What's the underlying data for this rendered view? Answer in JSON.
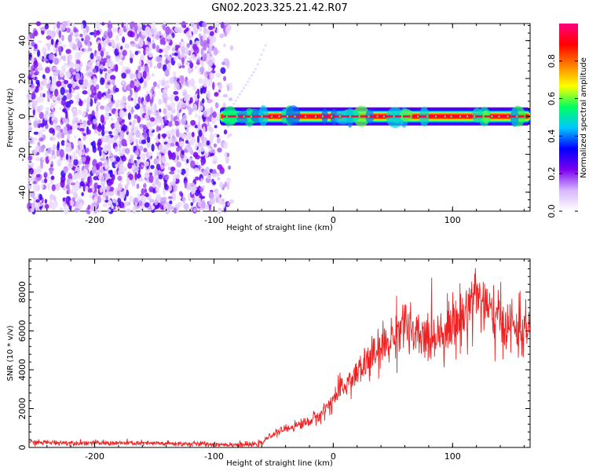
{
  "title": "GN02.2023.325.21.42.R07",
  "chart_data": [
    {
      "type": "heatmap",
      "xlabel": "Height of straight line (km)",
      "ylabel": "Frequency (Hz)",
      "xlim": [
        -255,
        165
      ],
      "ylim": [
        -50,
        49
      ],
      "x_ticks": [
        -200,
        -100,
        0,
        100
      ],
      "y_ticks": [
        -40,
        -20,
        0,
        20,
        40
      ],
      "colorbar": {
        "label": "Normalized spectral amplitude",
        "range": [
          0,
          1
        ],
        "ticks": [
          0.0,
          0.2,
          0.4,
          0.6,
          0.8
        ],
        "colors": [
          "#ffffff",
          "#d7b7ff",
          "#7a00ee",
          "#0000ff",
          "#00c8ff",
          "#00ff60",
          "#ffff00",
          "#ff8000",
          "#ff0000",
          "#ff0080"
        ]
      },
      "description_data": {
        "noise_region_x": [
          -255,
          -85
        ],
        "noise_amplitude": [
          0.05,
          0.3
        ],
        "signal_band_x": [
          -95,
          165
        ],
        "signal_band_center_hz": 0,
        "signal_band_halfwidth_hz": 2,
        "signal_peak_amplitude": 0.95,
        "faint_diagonal_trace": [
          [
            -85,
            5
          ],
          [
            -75,
            15
          ],
          [
            -65,
            25
          ],
          [
            -55,
            40
          ]
        ]
      }
    },
    {
      "type": "line",
      "xlabel": "Height of straight line (km)",
      "ylabel": "SNR (10 * v/v)",
      "xlim": [
        -255,
        165
      ],
      "ylim": [
        0,
        9700
      ],
      "x_ticks": [
        -200,
        -100,
        0,
        100
      ],
      "y_ticks": [
        0,
        2000,
        4000,
        6000,
        8000
      ],
      "series": [
        {
          "color": "#ee2222",
          "x": [
            -255,
            -230,
            -200,
            -170,
            -140,
            -110,
            -90,
            -70,
            -60,
            -55,
            -50,
            -40,
            -30,
            -20,
            -10,
            0,
            10,
            20,
            30,
            40,
            45,
            50,
            55,
            60,
            65,
            70,
            80,
            90,
            100,
            110,
            115,
            118,
            120,
            125,
            130,
            140,
            150,
            160,
            165
          ],
          "y": [
            260,
            250,
            230,
            220,
            200,
            180,
            160,
            140,
            200,
            500,
            700,
            950,
            1150,
            1350,
            1700,
            2500,
            3200,
            3800,
            4500,
            5000,
            5400,
            5600,
            6200,
            6500,
            5800,
            5600,
            5700,
            6000,
            6300,
            6800,
            7500,
            8000,
            7900,
            7600,
            6900,
            6500,
            6200,
            6000,
            6100
          ]
        }
      ]
    }
  ]
}
